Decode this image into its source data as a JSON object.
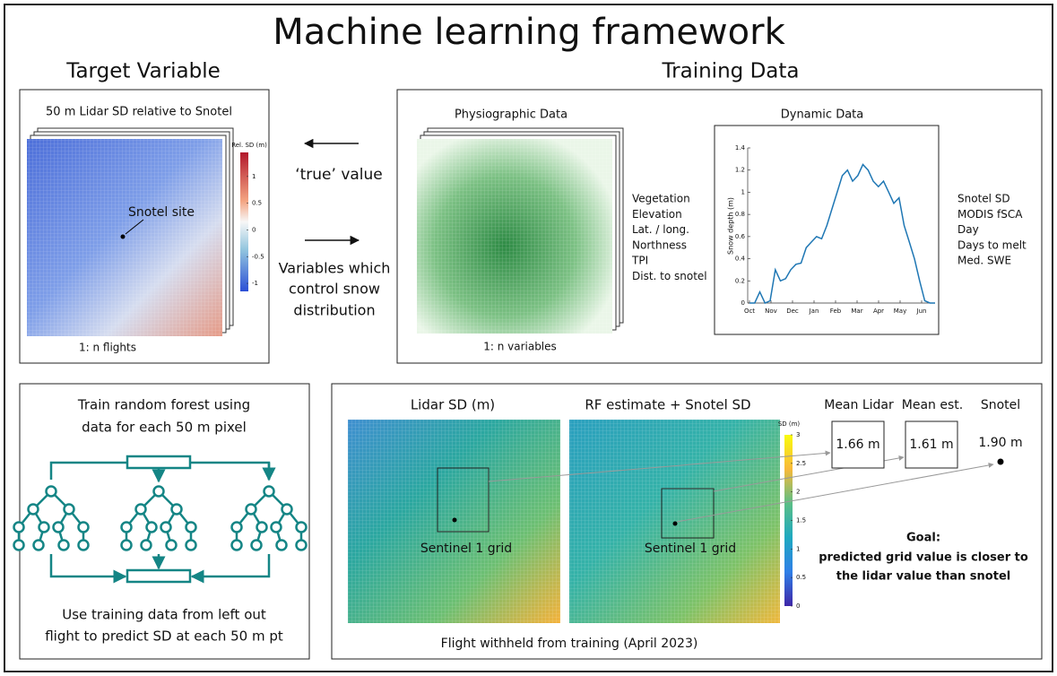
{
  "title": "Machine learning framework",
  "sections": {
    "target_variable": "Target Variable",
    "training_data": "Training Data"
  },
  "target_panel": {
    "caption": "50 m Lidar SD relative to Snotel",
    "snotel_label": "Snotel site",
    "footer": "1: n  flights",
    "colorbar": {
      "label": "Rel. SD (m)",
      "lim": [
        -1.15,
        1.45
      ],
      "ticks": [
        1,
        0.5,
        0,
        -0.5,
        -1
      ]
    }
  },
  "middle": {
    "true_value": "‘true’ value",
    "variables": [
      "Variables which",
      "control snow",
      "distribution"
    ]
  },
  "physiographic": {
    "title": "Physiographic Data",
    "variables": [
      "Vegetation",
      "Elevation",
      "Lat. / long.",
      "Northness",
      "TPI",
      "Dist. to snotel"
    ],
    "footer": "1: n  variables"
  },
  "dynamic": {
    "title": "Dynamic Data",
    "chart": {
      "type": "line",
      "y_label": "Snow depth (m)",
      "categories": [
        "Oct",
        "Nov",
        "Dec",
        "Jan",
        "Feb",
        "Mar",
        "Apr",
        "May",
        "Jun"
      ],
      "values": [
        0,
        0,
        0.1,
        0,
        0.02,
        0.3,
        0.2,
        0.22,
        0.3,
        0.35,
        0.36,
        0.5,
        0.55,
        0.6,
        0.58,
        0.7,
        0.85,
        1.0,
        1.15,
        1.2,
        1.1,
        1.15,
        1.25,
        1.2,
        1.1,
        1.05,
        1.1,
        1.0,
        0.9,
        0.95,
        0.7,
        0.55,
        0.4,
        0.2,
        0.02,
        0,
        0
      ],
      "color": "#1f77b4",
      "ylim": [
        0,
        1.4
      ],
      "yticks": [
        0,
        0.2,
        0.4,
        0.6,
        0.8,
        1,
        1.2,
        1.4
      ]
    },
    "variables": [
      "Snotel SD",
      "MODIS fSCA",
      "Day",
      "Days to melt",
      "Med. SWE"
    ]
  },
  "random_forest": {
    "lines": [
      "Train random forest using",
      "data for each 50 m pixel"
    ],
    "footer": [
      "Use training data from left out",
      "flight to predict SD at each 50 m pt"
    ]
  },
  "validation": {
    "lidar_title": "Lidar SD (m)",
    "rf_title": "RF estimate + Snotel SD",
    "grid_label": "Sentinel 1 grid",
    "colorbar": {
      "label": "SD (m)",
      "lim": [
        0,
        3
      ],
      "ticks": [
        3,
        2.5,
        2,
        1.5,
        1,
        0.5,
        0
      ]
    },
    "mean_lidar": {
      "label": "Mean Lidar",
      "value": "1.66 m"
    },
    "mean_est": {
      "label": "Mean est.",
      "value": "1.61 m"
    },
    "snotel": {
      "label": "Snotel",
      "value": "1.90 m"
    },
    "goal": [
      "Goal:",
      "predicted grid value is closer to",
      "the lidar value than snotel"
    ],
    "footer": "Flight withheld from training (April 2023)"
  }
}
